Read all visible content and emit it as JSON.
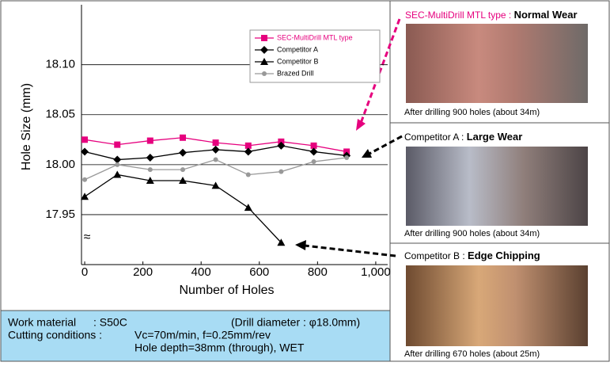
{
  "chart_data": {
    "type": "line",
    "ylabel": "Hole Size (mm)",
    "xlabel": "Number of Holes",
    "axis_break": "≈",
    "x": [
      0,
      112,
      225,
      337,
      450,
      562,
      675,
      787,
      900
    ],
    "series": [
      {
        "name": "SEC-MultiDrill MTL type",
        "color": "#e6007e",
        "marker": "square",
        "values": [
          18.025,
          18.02,
          18.024,
          18.027,
          18.022,
          18.019,
          18.023,
          18.019,
          18.013
        ]
      },
      {
        "name": "Competitor A",
        "color": "#000000",
        "marker": "diamond",
        "values": [
          18.013,
          18.005,
          18.007,
          18.012,
          18.015,
          18.013,
          18.019,
          18.013,
          18.009
        ]
      },
      {
        "name": "Competitor B",
        "color": "#000000",
        "marker": "triangle",
        "values": [
          17.968,
          17.99,
          17.984,
          17.984,
          17.979,
          17.957,
          17.922,
          null,
          null
        ]
      },
      {
        "name": "Brazed Drill",
        "color": "#999999",
        "marker": "circle",
        "values": [
          17.985,
          18.0,
          17.995,
          17.995,
          18.005,
          17.99,
          17.993,
          18.003,
          18.007
        ]
      }
    ],
    "xlim": [
      -11,
      1041
    ],
    "ylim": [
      17.9,
      18.16
    ],
    "xticks": [
      0,
      200,
      400,
      600,
      800,
      {
        "value": 1000,
        "label": "1,000"
      }
    ],
    "yticks": [
      17.95,
      18.05,
      {
        "value": 18.0,
        "label": "18.00"
      },
      {
        "value": 18.1,
        "label": "18.10"
      }
    ],
    "grid": true,
    "legend": "upper right"
  },
  "conditions": {
    "rows": [
      [
        "Work material",
        ": S50C",
        "(Drill diameter : φ18.0mm)"
      ],
      [
        "Cutting conditions :",
        "Vc=70m/min, f=0.25mm/rev",
        ""
      ],
      [
        "",
        "Hole depth=38mm (through), WET",
        ""
      ]
    ]
  },
  "photos": [
    {
      "name": "SEC-MultiDrill MTL type : ",
      "result": "Normal Wear",
      "caption": "After drilling 900 holes (about 34m)"
    },
    {
      "name": "Competitor A : ",
      "result": "Large Wear",
      "caption": "After drilling 900 holes (about 34m)"
    },
    {
      "name": "Competitor B : ",
      "result": "Edge Chipping",
      "caption": "After drilling 670 holes (about 25m)"
    }
  ]
}
